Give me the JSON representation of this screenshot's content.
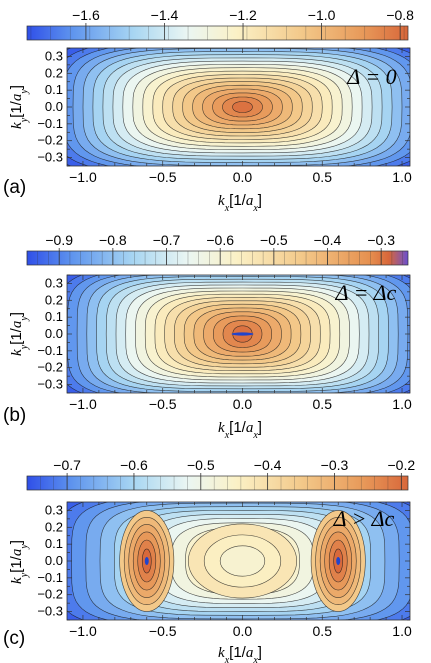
{
  "chart_data": [
    {
      "type": "heatmap",
      "panel_label": "(a)",
      "annotation": "Δ = 0",
      "x": [
        -1.0,
        -0.5,
        0.0,
        0.5,
        1.0
      ],
      "y": [
        -0.3,
        -0.2,
        -0.1,
        0.0,
        0.1,
        0.2,
        0.3
      ],
      "xlim": [
        -1.1,
        1.05
      ],
      "ylim": [
        -0.35,
        0.35
      ],
      "xlabel": "k_x[1/a_x]",
      "ylabel": "k_y[1/a_y]",
      "colorbar": {
        "range": [
          -1.75,
          -0.78
        ],
        "ticks": [
          -1.6,
          -1.4,
          -1.2,
          -1.0,
          -0.8
        ],
        "tick_labels": [
          "−1.6",
          "−1.4",
          "−1.2",
          "−1.0",
          "−0.8"
        ]
      },
      "surface": {
        "min_at": [
          [
            0.0,
            0.0
          ]
        ],
        "max": -0.8,
        "shape": "single-minimum"
      }
    },
    {
      "type": "heatmap",
      "panel_label": "(b)",
      "annotation": "Δ = Δc",
      "x": [
        -1.0,
        -0.5,
        0.0,
        0.5,
        1.0
      ],
      "y": [
        -0.3,
        -0.2,
        -0.1,
        0.0,
        0.1,
        0.2,
        0.3
      ],
      "xlim": [
        -1.1,
        1.05
      ],
      "ylim": [
        -0.35,
        0.35
      ],
      "xlabel": "k_x[1/a_x]",
      "ylabel": "k_y[1/a_y]",
      "colorbar": {
        "range": [
          -0.96,
          -0.25
        ],
        "ticks": [
          -0.9,
          -0.8,
          -0.7,
          -0.6,
          -0.5,
          -0.4,
          -0.3
        ],
        "tick_labels": [
          "−0.9",
          "−0.8",
          "−0.7",
          "−0.6",
          "−0.5",
          "−0.4",
          "−0.3"
        ]
      },
      "surface": {
        "min_at": [
          [
            0.0,
            0.0
          ]
        ],
        "max": -0.26,
        "shape": "flat-line-minimum"
      }
    },
    {
      "type": "heatmap",
      "panel_label": "(c)",
      "annotation": "Δ > Δc",
      "x": [
        -1.0,
        -0.5,
        0.0,
        0.5,
        1.0
      ],
      "y": [
        -0.3,
        -0.2,
        -0.1,
        0.0,
        0.1,
        0.2,
        0.3
      ],
      "xlim": [
        -1.1,
        1.05
      ],
      "ylim": [
        -0.35,
        0.35
      ],
      "xlabel": "k_x[1/a_x]",
      "ylabel": "k_y[1/a_y]",
      "colorbar": {
        "range": [
          -0.76,
          -0.19
        ],
        "ticks": [
          -0.7,
          -0.6,
          -0.5,
          -0.4,
          -0.3,
          -0.2
        ],
        "tick_labels": [
          "−0.7",
          "−0.6",
          "−0.5",
          "−0.4",
          "−0.3",
          "−0.2"
        ]
      },
      "surface": {
        "min_at": [
          [
            -0.6,
            0.0
          ],
          [
            0.6,
            0.0
          ]
        ],
        "max": -0.2,
        "shape": "double-minimum"
      }
    }
  ],
  "colors": {
    "low": "#3558e0",
    "mid": "#fbf3c8",
    "high": "#d8683a",
    "peak": "#c25a30",
    "marker": "#2244cc"
  }
}
